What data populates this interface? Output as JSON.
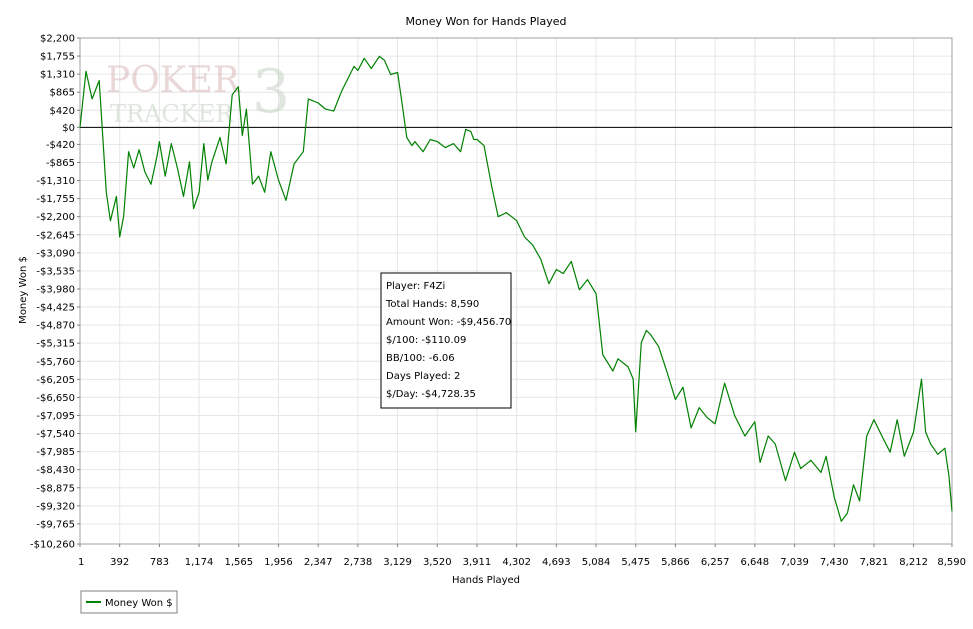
{
  "chart_data": {
    "type": "line",
    "title": "Money Won for Hands Played",
    "xlabel": "Hands Played",
    "ylabel": "Money Won $",
    "xlim": [
      1,
      8590
    ],
    "ylim": [
      -10260,
      2200
    ],
    "x_ticks": [
      1,
      392,
      783,
      1174,
      1565,
      1956,
      2347,
      2738,
      3129,
      3520,
      3911,
      4302,
      4693,
      5084,
      5475,
      5866,
      6257,
      6648,
      7039,
      7430,
      7821,
      8212,
      8590
    ],
    "y_ticks": [
      2200,
      1755,
      1310,
      865,
      420,
      0,
      -420,
      -865,
      -1310,
      -1755,
      -2200,
      -2645,
      -3090,
      -3535,
      -3980,
      -4425,
      -4870,
      -5315,
      -5760,
      -6205,
      -6650,
      -7095,
      -7540,
      -7985,
      -8430,
      -8875,
      -9320,
      -9765,
      -10260
    ],
    "grid": true,
    "legend_position": "bottom-left",
    "series": [
      {
        "name": "Money Won $",
        "color": "#008000",
        "x": [
          1,
          60,
          120,
          190,
          260,
          300,
          360,
          392,
          430,
          480,
          530,
          583,
          640,
          700,
          760,
          783,
          840,
          900,
          960,
          1020,
          1080,
          1120,
          1174,
          1220,
          1260,
          1300,
          1380,
          1440,
          1500,
          1560,
          1600,
          1640,
          1700,
          1760,
          1820,
          1880,
          1956,
          2030,
          2110,
          2200,
          2250,
          2347,
          2420,
          2500,
          2580,
          2640,
          2700,
          2738,
          2800,
          2870,
          2950,
          3000,
          3060,
          3129,
          3170,
          3220,
          3270,
          3300,
          3380,
          3450,
          3520,
          3600,
          3680,
          3750,
          3800,
          3850,
          3880,
          3911,
          3980,
          4060,
          4120,
          4200,
          4302,
          4380,
          4460,
          4540,
          4620,
          4693,
          4760,
          4840,
          4920,
          5000,
          5084,
          5150,
          5250,
          5300,
          5400,
          5450,
          5475,
          5530,
          5580,
          5620,
          5700,
          5780,
          5866,
          5940,
          6020,
          6100,
          6180,
          6257,
          6350,
          6400,
          6450,
          6550,
          6648,
          6700,
          6780,
          6850,
          6950,
          7039,
          7100,
          7200,
          7300,
          7350,
          7430,
          7500,
          7560,
          7620,
          7680,
          7750,
          7821,
          7900,
          7980,
          8050,
          8120,
          8212,
          8290,
          8330,
          8380,
          8450,
          8520,
          8560,
          8590
        ],
        "y": [
          0,
          1380,
          700,
          1150,
          -1600,
          -2300,
          -1700,
          -2700,
          -2200,
          -600,
          -1000,
          -550,
          -1100,
          -1400,
          -700,
          -350,
          -1200,
          -400,
          -1000,
          -1700,
          -850,
          -2000,
          -1600,
          -400,
          -1300,
          -850,
          -250,
          -900,
          800,
          1000,
          -200,
          450,
          -1400,
          -1200,
          -1600,
          -600,
          -1300,
          -1800,
          -900,
          -600,
          700,
          600,
          450,
          400,
          900,
          1200,
          1500,
          1400,
          1700,
          1450,
          1750,
          1650,
          1300,
          1350,
          650,
          -250,
          -450,
          -350,
          -600,
          -300,
          -350,
          -500,
          -400,
          -600,
          -50,
          -100,
          -300,
          -300,
          -450,
          -1500,
          -2200,
          -2100,
          -2300,
          -2700,
          -2900,
          -3250,
          -3850,
          -3500,
          -3600,
          -3300,
          -4000,
          -3750,
          -4100,
          -5600,
          -6000,
          -5700,
          -5900,
          -6200,
          -7500,
          -5300,
          -5000,
          -5100,
          -5400,
          -6000,
          -6700,
          -6400,
          -7400,
          -6900,
          -7150,
          -7300,
          -6300,
          -6700,
          -7100,
          -7600,
          -7250,
          -8250,
          -7600,
          -7800,
          -8700,
          -8000,
          -8400,
          -8200,
          -8500,
          -8100,
          -9100,
          -9700,
          -9500,
          -8800,
          -9200,
          -7600,
          -7200,
          -7600,
          -8000,
          -7200,
          -8100,
          -7500,
          -6200,
          -7500,
          -7800,
          -8050,
          -7900,
          -8600,
          -9456
        ]
      }
    ],
    "info_box": {
      "player": "Player: F4Zi",
      "total_hands": "Total Hands: 8,590",
      "amount_won": "Amount Won: -$9,456.70",
      "per_100": "$/100: -$110.09",
      "bb_100": "BB/100: -6.06",
      "days_played": "Days Played: 2",
      "per_day": "$/Day: -$4,728.35"
    }
  },
  "watermark": {
    "line1": "POKER",
    "line2": "TRACKER",
    "numeral": "3"
  },
  "colors": {
    "series": "#008000",
    "grid": "#e6e6e6",
    "plot_border": "#a0a0a0",
    "zero_line": "#000000"
  }
}
